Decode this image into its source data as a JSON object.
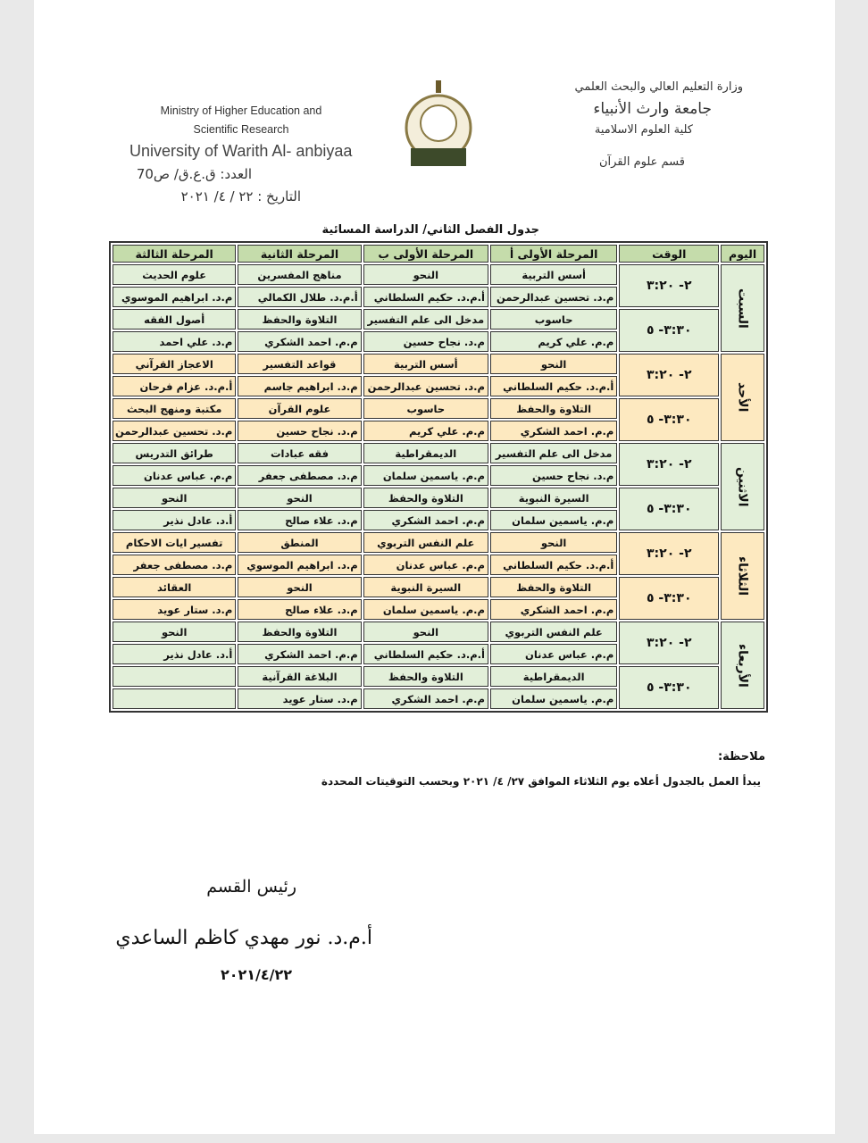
{
  "header": {
    "ministry_en": [
      "Ministry of Higher Education and",
      "Scientific Research"
    ],
    "university_en": "University of Warith Al- anbiyaa",
    "number": "العدد: ق.ع.ق/ ص70",
    "date": "التاريخ : ٢٢ / ٤/ ٢٠٢١",
    "ministry_ar": "وزارة التعليم العالي والبحث العلمي",
    "university_ar": "جامعة وارث الأنبياء",
    "college": "كلية العلوم الاسلامية",
    "department": "قسم علوم القرآن"
  },
  "table": {
    "title": "جدول الفصل الثاني/ الدراسة المسائية",
    "headers": [
      "اليوم",
      "الوقت",
      "المرحلة الأولى أ",
      "المرحلة الأولى ب",
      "المرحلة الثانية",
      "المرحلة الثالثة"
    ],
    "days": [
      {
        "day": "السبت",
        "slots": [
          {
            "time": "٢- ٣:٢٠",
            "subjects": [
              "أسس التربية",
              "النحو",
              "مناهج المفسرين",
              "علوم الحديث"
            ],
            "teachers": [
              "م.د. تحسين عبدالرحمن",
              "أ.م.د. حكيم السلطاني",
              "أ.م.د. طلال الكمالي",
              "م.د. ابراهيم الموسوي"
            ]
          },
          {
            "time": "٣:٣٠- ٥",
            "subjects": [
              "حاسوب",
              "مدخل الى علم التفسير",
              "التلاوة والحفظ",
              "أصول الفقه"
            ],
            "teachers": [
              "م.م. علي كريم",
              "م.د. نجاح حسين",
              "م.م. احمد الشكري",
              "م.د. علي احمد"
            ]
          }
        ]
      },
      {
        "day": "الأحد",
        "slots": [
          {
            "time": "٢- ٣:٢٠",
            "subjects": [
              "النحو",
              "أسس التربية",
              "قواعد التفسير",
              "الاعجاز القرآني"
            ],
            "teachers": [
              "أ.م.د. حكيم السلطاني",
              "م.د. تحسين عبدالرحمن",
              "م.د. ابراهيم جاسم",
              "أ.م.د. عزام فرحان"
            ]
          },
          {
            "time": "٣:٣٠- ٥",
            "subjects": [
              "التلاوة والحفظ",
              "حاسوب",
              "علوم القرآن",
              "مكتبة ومنهج البحث"
            ],
            "teachers": [
              "م.م. احمد الشكري",
              "م.م. علي كريم",
              "م.د. نجاح حسين",
              "م.د. تحسين عبدالرحمن"
            ]
          }
        ]
      },
      {
        "day": "الاثنين",
        "slots": [
          {
            "time": "٢- ٣:٢٠",
            "subjects": [
              "مدخل الى علم التفسير",
              "الديمقراطية",
              "فقه عبادات",
              "طرائق التدريس"
            ],
            "teachers": [
              "م.د. نجاح حسين",
              "م.م. ياسمين سلمان",
              "م.د. مصطفى جعفر",
              "م.م. عباس عدنان"
            ]
          },
          {
            "time": "٣:٣٠- ٥",
            "subjects": [
              "السيرة النبوية",
              "التلاوة والحفظ",
              "النحو",
              "النحو"
            ],
            "teachers": [
              "م.م. ياسمين سلمان",
              "م.م. احمد الشكري",
              "م.د. علاء صالح",
              "أ.د. عادل نذير"
            ]
          }
        ]
      },
      {
        "day": "الثلاثاء",
        "slots": [
          {
            "time": "٢- ٣:٢٠",
            "subjects": [
              "النحو",
              "علم النفس التربوي",
              "المنطق",
              "تفسير ايات الاحكام"
            ],
            "teachers": [
              "أ.م.د. حكيم السلطاني",
              "م.م. عباس عدنان",
              "م.د. ابراهيم الموسوي",
              "م.د. مصطفى جعفر"
            ]
          },
          {
            "time": "٣:٣٠- ٥",
            "subjects": [
              "التلاوة والحفظ",
              "السيرة النبوية",
              "النحو",
              "العقائد"
            ],
            "teachers": [
              "م.م. احمد الشكري",
              "م.م. ياسمين سلمان",
              "م.د. علاء صالح",
              "م.د. ستار عويد"
            ]
          }
        ]
      },
      {
        "day": "الأربعاء",
        "slots": [
          {
            "time": "٢- ٣:٢٠",
            "subjects": [
              "علم النفس التربوي",
              "النحو",
              "التلاوة والحفظ",
              "النحو"
            ],
            "teachers": [
              "م.م. عباس عدنان",
              "أ.م.د. حكيم السلطاني",
              "م.م. احمد الشكري",
              "أ.د. عادل نذير"
            ]
          },
          {
            "time": "٣:٣٠- ٥",
            "subjects": [
              "الديمقراطية",
              "التلاوة والحفظ",
              "البلاغة القرآنية",
              null
            ],
            "teachers": [
              "م.م. ياسمين سلمان",
              "م.م. احمد الشكري",
              "م.د. ستار عويد",
              null
            ]
          }
        ]
      }
    ]
  },
  "note": {
    "label": "ملاحظة:",
    "text": "يبدأ العمل بالجدول أعلاه يوم الثلاثاء الموافق ٢٧/ ٤/ ٢٠٢١ وبحسب التوقيتات المحددة"
  },
  "signature": {
    "title": "رئيس القسم",
    "name": "أ.م.د. نور مهدي كاظم الساعدي",
    "date": "٢٠٢١/٤/٢٢"
  }
}
